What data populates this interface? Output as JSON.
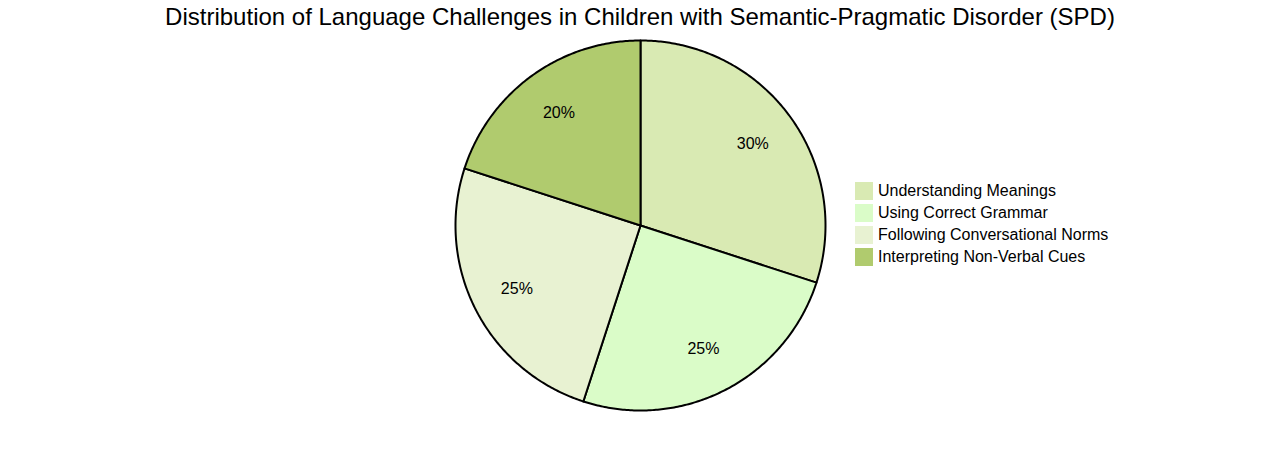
{
  "chart_data": {
    "type": "pie",
    "title": "Distribution of Language Challenges in Children with Semantic-Pragmatic Disorder (SPD)",
    "categories": [
      "Understanding Meanings",
      "Using Correct Grammar",
      "Following Conversational Norms",
      "Interpreting Non-Verbal Cues"
    ],
    "values": [
      30,
      25,
      25,
      20
    ],
    "value_labels": [
      "30%",
      "25%",
      "25%",
      "20%"
    ],
    "colors": [
      "#d9eab3",
      "#dafcc8",
      "#e8f2d2",
      "#b0cb6e"
    ],
    "data_labels": true,
    "legend": "right"
  }
}
